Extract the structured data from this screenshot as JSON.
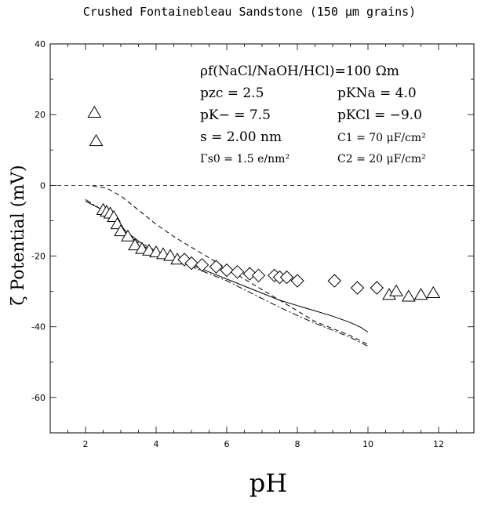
{
  "chart_data": {
    "type": "scatter",
    "title": "Crushed Fontainebleau Sandstone (150 μm grains)",
    "xlabel": "pH",
    "ylabel": "ζ Potential (mV)",
    "xlim": [
      1,
      13
    ],
    "ylim": [
      -70,
      40
    ],
    "x_ticks": [
      2,
      4,
      6,
      8,
      10,
      12
    ],
    "y_ticks": [
      -60,
      -40,
      -20,
      0,
      20,
      40
    ],
    "grid": false,
    "reference_line_y": 0,
    "annotations": [
      {
        "id": "rho",
        "text": "ρf(NaCl/NaOH/HCl)=100 Ωm"
      },
      {
        "id": "pzc",
        "text": "pzc = 2.5"
      },
      {
        "id": "pkna",
        "text": "pKNa = 4.0"
      },
      {
        "id": "pkminus",
        "text": "pK− = 7.5"
      },
      {
        "id": "pkcl",
        "text": "pKCl = −9.0"
      },
      {
        "id": "s",
        "text": "s = 2.00 nm"
      },
      {
        "id": "c1",
        "text": "C1 = 70 μF/cm²"
      },
      {
        "id": "gamma",
        "text": "Γs0 = 1.5 e/nm²"
      },
      {
        "id": "c2",
        "text": "C2 = 20 μF/cm²"
      }
    ],
    "series": [
      {
        "marker": "triangle",
        "x": [
          2.25,
          2.3,
          2.5,
          2.6,
          2.7,
          2.8,
          2.9,
          3.0,
          3.2,
          3.4,
          3.6,
          3.8,
          4.0,
          4.2,
          4.4,
          4.6,
          10.6,
          10.8,
          11.15,
          11.5,
          11.85
        ],
        "y": [
          20.5,
          12.5,
          -7,
          -7.5,
          -8,
          -9,
          -11,
          -13,
          -14.5,
          -17,
          -18,
          -18.5,
          -19,
          -19.5,
          -20,
          -21,
          -31,
          -30,
          -31.5,
          -31,
          -30.5
        ]
      },
      {
        "marker": "diamond",
        "x": [
          4.8,
          5.0,
          5.3,
          5.7,
          6.0,
          6.3,
          6.65,
          6.9,
          7.35,
          7.5,
          7.7,
          8.0,
          9.05,
          9.7,
          10.25
        ],
        "y": [
          -21,
          -22,
          -22.5,
          -23,
          -24,
          -24.5,
          -25,
          -25.5,
          -25.5,
          -26,
          -26,
          -27,
          -27,
          -29,
          -29
        ]
      },
      {
        "line": "solid",
        "x": [
          2.0,
          2.4,
          2.8,
          3.2,
          3.6,
          4.0,
          4.5,
          5.0,
          5.5,
          6.0,
          6.5,
          7.0,
          7.5,
          8.0,
          8.5,
          9.0,
          9.5,
          9.8,
          10.0
        ],
        "y": [
          -4.5,
          -6.5,
          -9.5,
          -13.5,
          -16.5,
          -18.5,
          -20.5,
          -22.5,
          -24.5,
          -26.5,
          -28.5,
          -30.5,
          -32.5,
          -34,
          -35.5,
          -37,
          -38.8,
          -40.2,
          -41.5
        ]
      },
      {
        "line": "dashed",
        "x": [
          2.2,
          2.6,
          3.0,
          3.5,
          4.0,
          4.5,
          5.0,
          5.5,
          6.0,
          6.5,
          7.0,
          7.5,
          8.0,
          8.5,
          9.0,
          9.5,
          10.0
        ],
        "y": [
          -0.2,
          -0.8,
          -3.0,
          -7.0,
          -11.0,
          -14.5,
          -17.5,
          -20.5,
          -23.5,
          -26.5,
          -29.5,
          -32.5,
          -35.5,
          -38.5,
          -40.5,
          -42.5,
          -45.0
        ]
      },
      {
        "line": "dash-dot",
        "x": [
          2.0,
          2.4,
          2.8,
          3.2,
          3.6,
          4.0,
          4.5,
          5.0,
          5.5,
          6.0,
          6.5,
          7.0,
          7.5,
          8.0,
          8.5,
          9.0,
          9.5,
          10.0
        ],
        "y": [
          -4.0,
          -6.5,
          -10.0,
          -14.0,
          -17.0,
          -19.0,
          -21.0,
          -23.0,
          -25.0,
          -27.0,
          -29.5,
          -32.0,
          -34.5,
          -36.8,
          -39.0,
          -41.0,
          -43.0,
          -45.5
        ]
      }
    ]
  }
}
